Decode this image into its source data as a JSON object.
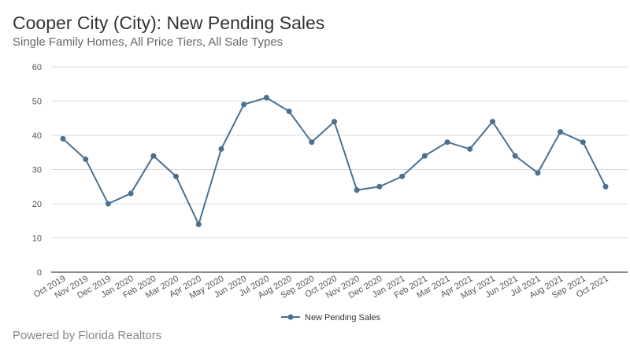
{
  "header": {
    "title": "Cooper City (City): New Pending Sales",
    "subtitle": "Single Family Homes, All Price Tiers, All Sale Types"
  },
  "footer": {
    "text": "Powered by Florida Realtors"
  },
  "chart_data": {
    "type": "line",
    "title": "Cooper City (City): New Pending Sales",
    "subtitle": "Single Family Homes, All Price Tiers, All Sale Types",
    "categories": [
      "Oct 2019",
      "Nov 2019",
      "Dec 2019",
      "Jan 2020",
      "Feb 2020",
      "Mar 2020",
      "Apr 2020",
      "May 2020",
      "Jun 2020",
      "Jul 2020",
      "Aug 2020",
      "Sep 2020",
      "Oct 2020",
      "Nov 2020",
      "Dec 2020",
      "Jan 2021",
      "Feb 2021",
      "Mar 2021",
      "Apr 2021",
      "May 2021",
      "Jun 2021",
      "Jul 2021",
      "Aug 2021",
      "Sep 2021",
      "Oct 2021"
    ],
    "series": [
      {
        "name": "New Pending Sales",
        "color": "#4a7090",
        "values": [
          39,
          33,
          20,
          23,
          34,
          28,
          14,
          36,
          49,
          51,
          47,
          38,
          44,
          24,
          25,
          28,
          34,
          38,
          36,
          44,
          34,
          29,
          41,
          38,
          25
        ]
      }
    ],
    "ylim": [
      0,
      60
    ],
    "yticks": [
      0,
      10,
      20,
      30,
      40,
      50,
      60
    ],
    "grid": true,
    "legend": "bottom"
  }
}
